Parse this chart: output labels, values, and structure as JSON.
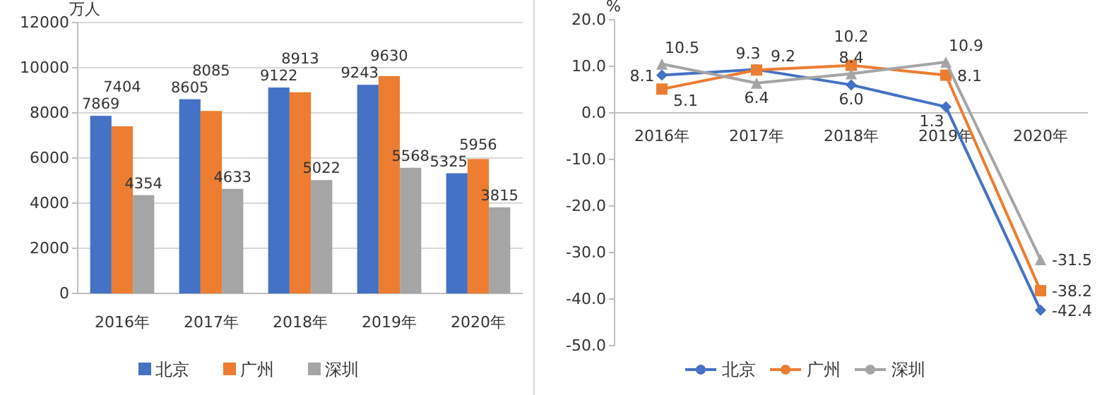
{
  "chart_data": [
    {
      "type": "bar",
      "ylabel": "万人",
      "categories": [
        "2016年",
        "2017年",
        "2018年",
        "2019年",
        "2020年"
      ],
      "series": [
        {
          "name": "北京",
          "color": "#4472c4",
          "values": [
            7869,
            8605,
            9122,
            9243,
            5325
          ]
        },
        {
          "name": "广州",
          "color": "#ed7d31",
          "values": [
            7404,
            8085,
            8913,
            9630,
            5956
          ]
        },
        {
          "name": "深圳",
          "color": "#a5a5a5",
          "values": [
            4354,
            4633,
            5022,
            5568,
            3815
          ]
        }
      ],
      "ylim": [
        0,
        12000
      ],
      "yticks": [
        0,
        2000,
        4000,
        6000,
        8000,
        10000,
        12000
      ],
      "grid": "y",
      "data_labels": true,
      "legend": "bottom"
    },
    {
      "type": "line",
      "ylabel": "%",
      "categories": [
        "2016年",
        "2017年",
        "2018年",
        "2019年",
        "2020年"
      ],
      "series": [
        {
          "name": "北京",
          "color": "#4472c4",
          "marker": "diamond",
          "values": [
            8.1,
            9.3,
            6.0,
            1.3,
            -42.4
          ],
          "value_labels": [
            "8.1",
            "9.3",
            "6.0",
            "1.3",
            "-42.4"
          ]
        },
        {
          "name": "广州",
          "color": "#ed7d31",
          "marker": "square",
          "values": [
            5.1,
            9.2,
            10.2,
            8.1,
            -38.2
          ],
          "value_labels": [
            "5.1",
            "9.2",
            "10.2",
            "8.1",
            "-38.2"
          ]
        },
        {
          "name": "深圳",
          "color": "#a5a5a5",
          "marker": "triangle",
          "values": [
            10.5,
            6.4,
            8.4,
            10.9,
            -31.5
          ],
          "value_labels": [
            "10.5",
            "6.4",
            "8.4",
            "10.9",
            "-31.5"
          ]
        }
      ],
      "ylim": [
        -50,
        20
      ],
      "yticks": [
        {
          "value": -50,
          "label": "-50.0"
        },
        {
          "value": -40,
          "label": "-40.0"
        },
        {
          "value": -30,
          "label": "-30.0"
        },
        {
          "value": -20,
          "label": "-20.0"
        },
        {
          "value": -10,
          "label": "-10.0"
        },
        {
          "value": 0,
          "label": "0.0"
        },
        {
          "value": 10,
          "label": "10.0"
        },
        {
          "value": 20,
          "label": "20.0"
        }
      ],
      "grid": false,
      "legend": "bottom"
    }
  ]
}
